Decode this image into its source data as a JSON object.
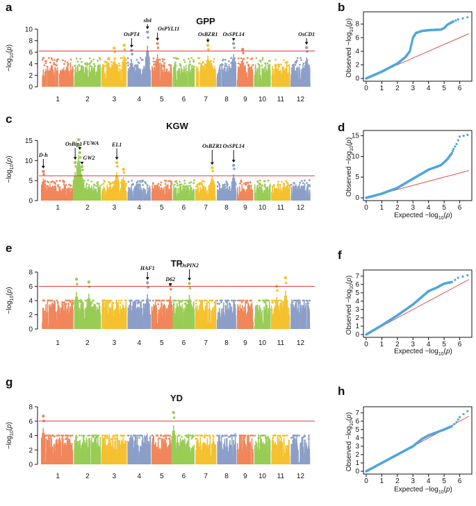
{
  "colors": {
    "chr": [
      "#f0865a",
      "#99cc55",
      "#f5c12e",
      "#8c9fc8",
      "#f0865a",
      "#99cc55",
      "#f5c12e",
      "#8c9fc8",
      "#f0865a",
      "#99cc55",
      "#f5c12e",
      "#8c9fc8"
    ],
    "threshold": "#e03a3a",
    "qq_points": "#4fa6dd",
    "qq_line": "#e03a3a"
  },
  "chart_data": [
    {
      "type": "scatter",
      "panel": "a",
      "title": "GPP",
      "ylabel": "-log10(p)",
      "ylim": [
        0,
        10
      ],
      "yticks": [
        0,
        2,
        4,
        6,
        8,
        10
      ],
      "chromosomes": [
        "1",
        "2",
        "3",
        "4",
        "5",
        "6",
        "7",
        "8",
        "9",
        "10",
        "11",
        "12"
      ],
      "threshold": 6.2,
      "peaks": [
        {
          "chr": 3,
          "pos": 0.5,
          "value": 6.7
        },
        {
          "chr": 3,
          "pos": 0.88,
          "value": 7.2
        },
        {
          "chr": 4,
          "pos": 0.18,
          "value": 6.3
        },
        {
          "chr": 4,
          "pos": 0.85,
          "value": 9.5
        },
        {
          "chr": 5,
          "pos": 0.3,
          "value": 7.5
        },
        {
          "chr": 7,
          "pos": 0.6,
          "value": 7.2
        },
        {
          "chr": 8,
          "pos": 0.85,
          "value": 7.5
        },
        {
          "chr": 9,
          "pos": 0.35,
          "value": 6.5
        },
        {
          "chr": 12,
          "pos": 0.8,
          "value": 6.8
        }
      ],
      "annotations": [
        {
          "label": "OsPT4",
          "chr": 4,
          "pos": 0.18
        },
        {
          "label": "sh4",
          "chr": 4,
          "pos": 0.85
        },
        {
          "label": "OsPYL11",
          "chr": 5,
          "pos": 0.3
        },
        {
          "label": "OsBZR1",
          "chr": 7,
          "pos": 0.6
        },
        {
          "label": "OsSPL14",
          "chr": 8,
          "pos": 0.85
        },
        {
          "label": "OsCD1",
          "chr": 12,
          "pos": 0.8
        }
      ]
    },
    {
      "type": "scatter",
      "panel": "b",
      "title": "",
      "xlabel": "",
      "ylabel": "Observed -log10(p)",
      "xlim": [
        0,
        6.6
      ],
      "ylim": [
        0,
        9.4
      ],
      "xticks": [
        0,
        1,
        2,
        3,
        4,
        5,
        6
      ],
      "yticks": [
        0,
        2,
        4,
        6,
        8
      ],
      "curve": [
        [
          0,
          0
        ],
        [
          1,
          1.0
        ],
        [
          2,
          2.2
        ],
        [
          2.5,
          3.1
        ],
        [
          2.8,
          4.0
        ],
        [
          3.0,
          6.0
        ],
        [
          3.2,
          6.7
        ],
        [
          3.6,
          7.0
        ],
        [
          4.0,
          7.1
        ],
        [
          4.8,
          7.2
        ],
        [
          5.0,
          7.4
        ],
        [
          5.2,
          7.9
        ],
        [
          5.6,
          8.4
        ],
        [
          5.9,
          8.7
        ],
        [
          6.5,
          9.0
        ]
      ],
      "expected_line": [
        [
          0,
          0
        ],
        [
          6.6,
          6.6
        ]
      ]
    },
    {
      "type": "scatter",
      "panel": "c",
      "title": "KGW",
      "ylabel": "-log10(p)",
      "ylim": [
        0,
        15.6
      ],
      "yticks": [
        0,
        5,
        10,
        15
      ],
      "chromosomes": [
        "1",
        "2",
        "3",
        "4",
        "5",
        "6",
        "7",
        "8",
        "9",
        "10",
        "11",
        "12"
      ],
      "threshold": 6.2,
      "peaks": [
        {
          "chr": 1,
          "pos": 0.05,
          "value": 7.3
        },
        {
          "chr": 2,
          "pos": 0.05,
          "value": 9.5
        },
        {
          "chr": 2,
          "pos": 0.18,
          "value": 15.2
        },
        {
          "chr": 2,
          "pos": 0.22,
          "value": 12.0
        },
        {
          "chr": 2,
          "pos": 0.3,
          "value": 8.5
        },
        {
          "chr": 3,
          "pos": 0.6,
          "value": 9.5
        },
        {
          "chr": 3,
          "pos": 0.85,
          "value": 7.8
        },
        {
          "chr": 7,
          "pos": 0.8,
          "value": 8.2
        },
        {
          "chr": 8,
          "pos": 0.85,
          "value": 8.8
        }
      ],
      "annotations": [
        {
          "label": "D-h",
          "chr": 1,
          "pos": 0.05
        },
        {
          "label": "OsBip1",
          "chr": 2,
          "pos": 0.05
        },
        {
          "label": "FUWA",
          "chr": 2,
          "pos": 0.22
        },
        {
          "label": "GW2",
          "chr": 2,
          "pos": 0.3
        },
        {
          "label": "EL1",
          "chr": 3,
          "pos": 0.6
        },
        {
          "label": "OsBZR1",
          "chr": 7,
          "pos": 0.8
        },
        {
          "label": "OsSPL14",
          "chr": 8,
          "pos": 0.85
        }
      ]
    },
    {
      "type": "scatter",
      "panel": "d",
      "xlabel": "Expected -log10(p)",
      "ylabel": "Observed -log10(p)",
      "xlim": [
        0,
        6.6
      ],
      "ylim": [
        0,
        15.6
      ],
      "xticks": [
        0,
        1,
        2,
        3,
        4,
        5,
        6
      ],
      "yticks": [
        0,
        5,
        10,
        15
      ],
      "curve": [
        [
          0,
          0
        ],
        [
          1,
          1.0
        ],
        [
          2,
          2.4
        ],
        [
          3,
          4.6
        ],
        [
          4,
          6.8
        ],
        [
          4.8,
          7.9
        ],
        [
          5.2,
          9.3
        ],
        [
          5.5,
          10.8
        ],
        [
          5.6,
          11.8
        ],
        [
          5.8,
          13.0
        ],
        [
          6.0,
          14.8
        ],
        [
          6.5,
          15.2
        ]
      ],
      "expected_line": [
        [
          0,
          0
        ],
        [
          6.6,
          6.6
        ]
      ]
    },
    {
      "type": "scatter",
      "panel": "e",
      "title": "TP",
      "ylabel": "-log10(p)",
      "ylim": [
        0,
        8
      ],
      "yticks": [
        0,
        2,
        4,
        6,
        8
      ],
      "chromosomes": [
        "1",
        "2",
        "3",
        "4",
        "5",
        "6",
        "7",
        "8",
        "9",
        "10",
        "11",
        "12"
      ],
      "threshold": 6.0,
      "peaks": [
        {
          "chr": 2,
          "pos": 0.1,
          "value": 7.0
        },
        {
          "chr": 2,
          "pos": 0.55,
          "value": 6.6
        },
        {
          "chr": 4,
          "pos": 0.85,
          "value": 6.5
        },
        {
          "chr": 5,
          "pos": 0.9,
          "value": 6.2
        },
        {
          "chr": 6,
          "pos": 0.75,
          "value": 6.4
        },
        {
          "chr": 11,
          "pos": 0.3,
          "value": 6.0
        },
        {
          "chr": 11,
          "pos": 0.75,
          "value": 7.2
        }
      ],
      "annotations": [
        {
          "label": "HAF1",
          "chr": 4,
          "pos": 0.85
        },
        {
          "label": "D62",
          "chr": 5,
          "pos": 0.9
        },
        {
          "label": "OsPIN2",
          "chr": 6,
          "pos": 0.75
        }
      ]
    },
    {
      "type": "scatter",
      "panel": "f",
      "xlabel": "Expected -log10(p)",
      "ylabel": "Observed -log10(p)",
      "xlim": [
        0,
        6.6
      ],
      "ylim": [
        0,
        7.4
      ],
      "xticks": [
        0,
        1,
        2,
        3,
        4,
        5,
        6
      ],
      "yticks": [
        0,
        1,
        2,
        3,
        4,
        5,
        6,
        7
      ],
      "curve": [
        [
          0,
          0
        ],
        [
          1,
          1.1
        ],
        [
          2,
          2.3
        ],
        [
          3,
          3.6
        ],
        [
          3.5,
          4.4
        ],
        [
          4,
          5.2
        ],
        [
          4.5,
          5.6
        ],
        [
          5,
          6.1
        ],
        [
          5.5,
          6.3
        ],
        [
          5.9,
          6.8
        ],
        [
          6.5,
          7.1
        ]
      ],
      "expected_line": [
        [
          0,
          0
        ],
        [
          6.6,
          6.6
        ]
      ]
    },
    {
      "type": "scatter",
      "panel": "g",
      "title": "YD",
      "ylabel": "-log10(p)",
      "ylim": [
        0,
        8
      ],
      "yticks": [
        0,
        2,
        4,
        6,
        8
      ],
      "chromosomes": [
        "1",
        "2",
        "3",
        "4",
        "5",
        "6",
        "7",
        "8",
        "9",
        "10",
        "11",
        "12"
      ],
      "threshold": 6.0,
      "peaks": [
        {
          "chr": 1,
          "pos": 0.05,
          "value": 6.7
        },
        {
          "chr": 6,
          "pos": 0.05,
          "value": 7.2
        }
      ],
      "annotations": []
    },
    {
      "type": "scatter",
      "panel": "h",
      "xlabel": "Expected -log10(p)",
      "ylabel": "Observed -log10(p)",
      "xlim": [
        0,
        6.6
      ],
      "ylim": [
        0,
        7.4
      ],
      "xticks": [
        0,
        1,
        2,
        3,
        4,
        5,
        6
      ],
      "yticks": [
        0,
        1,
        2,
        3,
        4,
        5,
        6,
        7
      ],
      "curve": [
        [
          0,
          0
        ],
        [
          1,
          1.0
        ],
        [
          2,
          2.0
        ],
        [
          3,
          3.0
        ],
        [
          3.6,
          3.9
        ],
        [
          4,
          4.3
        ],
        [
          5,
          5.0
        ],
        [
          5.5,
          5.4
        ],
        [
          5.8,
          5.9
        ],
        [
          6.0,
          6.5
        ],
        [
          6.5,
          7.2
        ]
      ],
      "expected_line": [
        [
          0,
          0
        ],
        [
          6.6,
          6.6
        ]
      ]
    }
  ]
}
